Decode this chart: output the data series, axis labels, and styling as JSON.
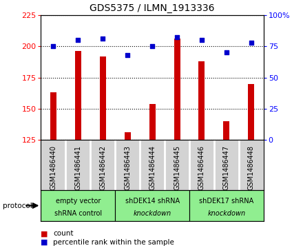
{
  "title": "GDS5375 / ILMN_1913336",
  "samples": [
    "GSM1486440",
    "GSM1486441",
    "GSM1486442",
    "GSM1486443",
    "GSM1486444",
    "GSM1486445",
    "GSM1486446",
    "GSM1486447",
    "GSM1486448"
  ],
  "counts": [
    163,
    196,
    192,
    131,
    154,
    206,
    188,
    140,
    170
  ],
  "percentiles": [
    75,
    80,
    81,
    68,
    75,
    82,
    80,
    70,
    78
  ],
  "ylim_left": [
    125,
    225
  ],
  "ylim_right": [
    0,
    100
  ],
  "yticks_left": [
    125,
    150,
    175,
    200,
    225
  ],
  "yticks_right": [
    0,
    25,
    50,
    75,
    100
  ],
  "bar_color": "#cc0000",
  "marker_color": "#0000cc",
  "groups": [
    {
      "label": "empty vector\nshRNA control",
      "start": 0,
      "end": 3,
      "color": "#90ee90"
    },
    {
      "label": "shDEK14 shRNA\nknockdown",
      "start": 3,
      "end": 6,
      "color": "#90ee90"
    },
    {
      "label": "shDEK17 shRNA\nknockdown",
      "start": 6,
      "end": 9,
      "color": "#90ee90"
    }
  ],
  "protocol_label": "protocol",
  "legend_count_label": "count",
  "legend_pct_label": "percentile rank within the sample",
  "bar_width": 0.25,
  "plot_bg_color": "#ffffff",
  "sample_box_color": "#d3d3d3",
  "separator_color": "#ffffff",
  "grid_linestyle": "dotted",
  "grid_color": "#000000",
  "grid_linewidth": 0.8,
  "spine_color": "#000000",
  "spine_linewidth": 0.8
}
